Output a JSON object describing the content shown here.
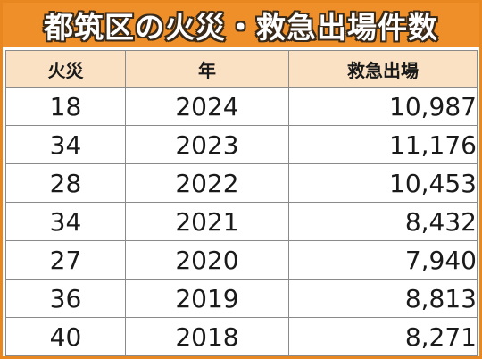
{
  "title": "都筑区の火災・救急出場件数",
  "colors": {
    "title_bg": "#ee8f2a",
    "header_bg": "#fbe1c3",
    "border": "#e8871f"
  },
  "table": {
    "headers": [
      "火災",
      "年",
      "救急出場"
    ],
    "rows": [
      {
        "fires": "18",
        "year": "2024",
        "ambulance": "10,987"
      },
      {
        "fires": "34",
        "year": "2023",
        "ambulance": "11,176"
      },
      {
        "fires": "28",
        "year": "2022",
        "ambulance": "10,453"
      },
      {
        "fires": "34",
        "year": "2021",
        "ambulance": "8,432"
      },
      {
        "fires": "27",
        "year": "2020",
        "ambulance": "7,940"
      },
      {
        "fires": "36",
        "year": "2019",
        "ambulance": "8,813"
      },
      {
        "fires": "40",
        "year": "2018",
        "ambulance": "8,271"
      }
    ]
  }
}
